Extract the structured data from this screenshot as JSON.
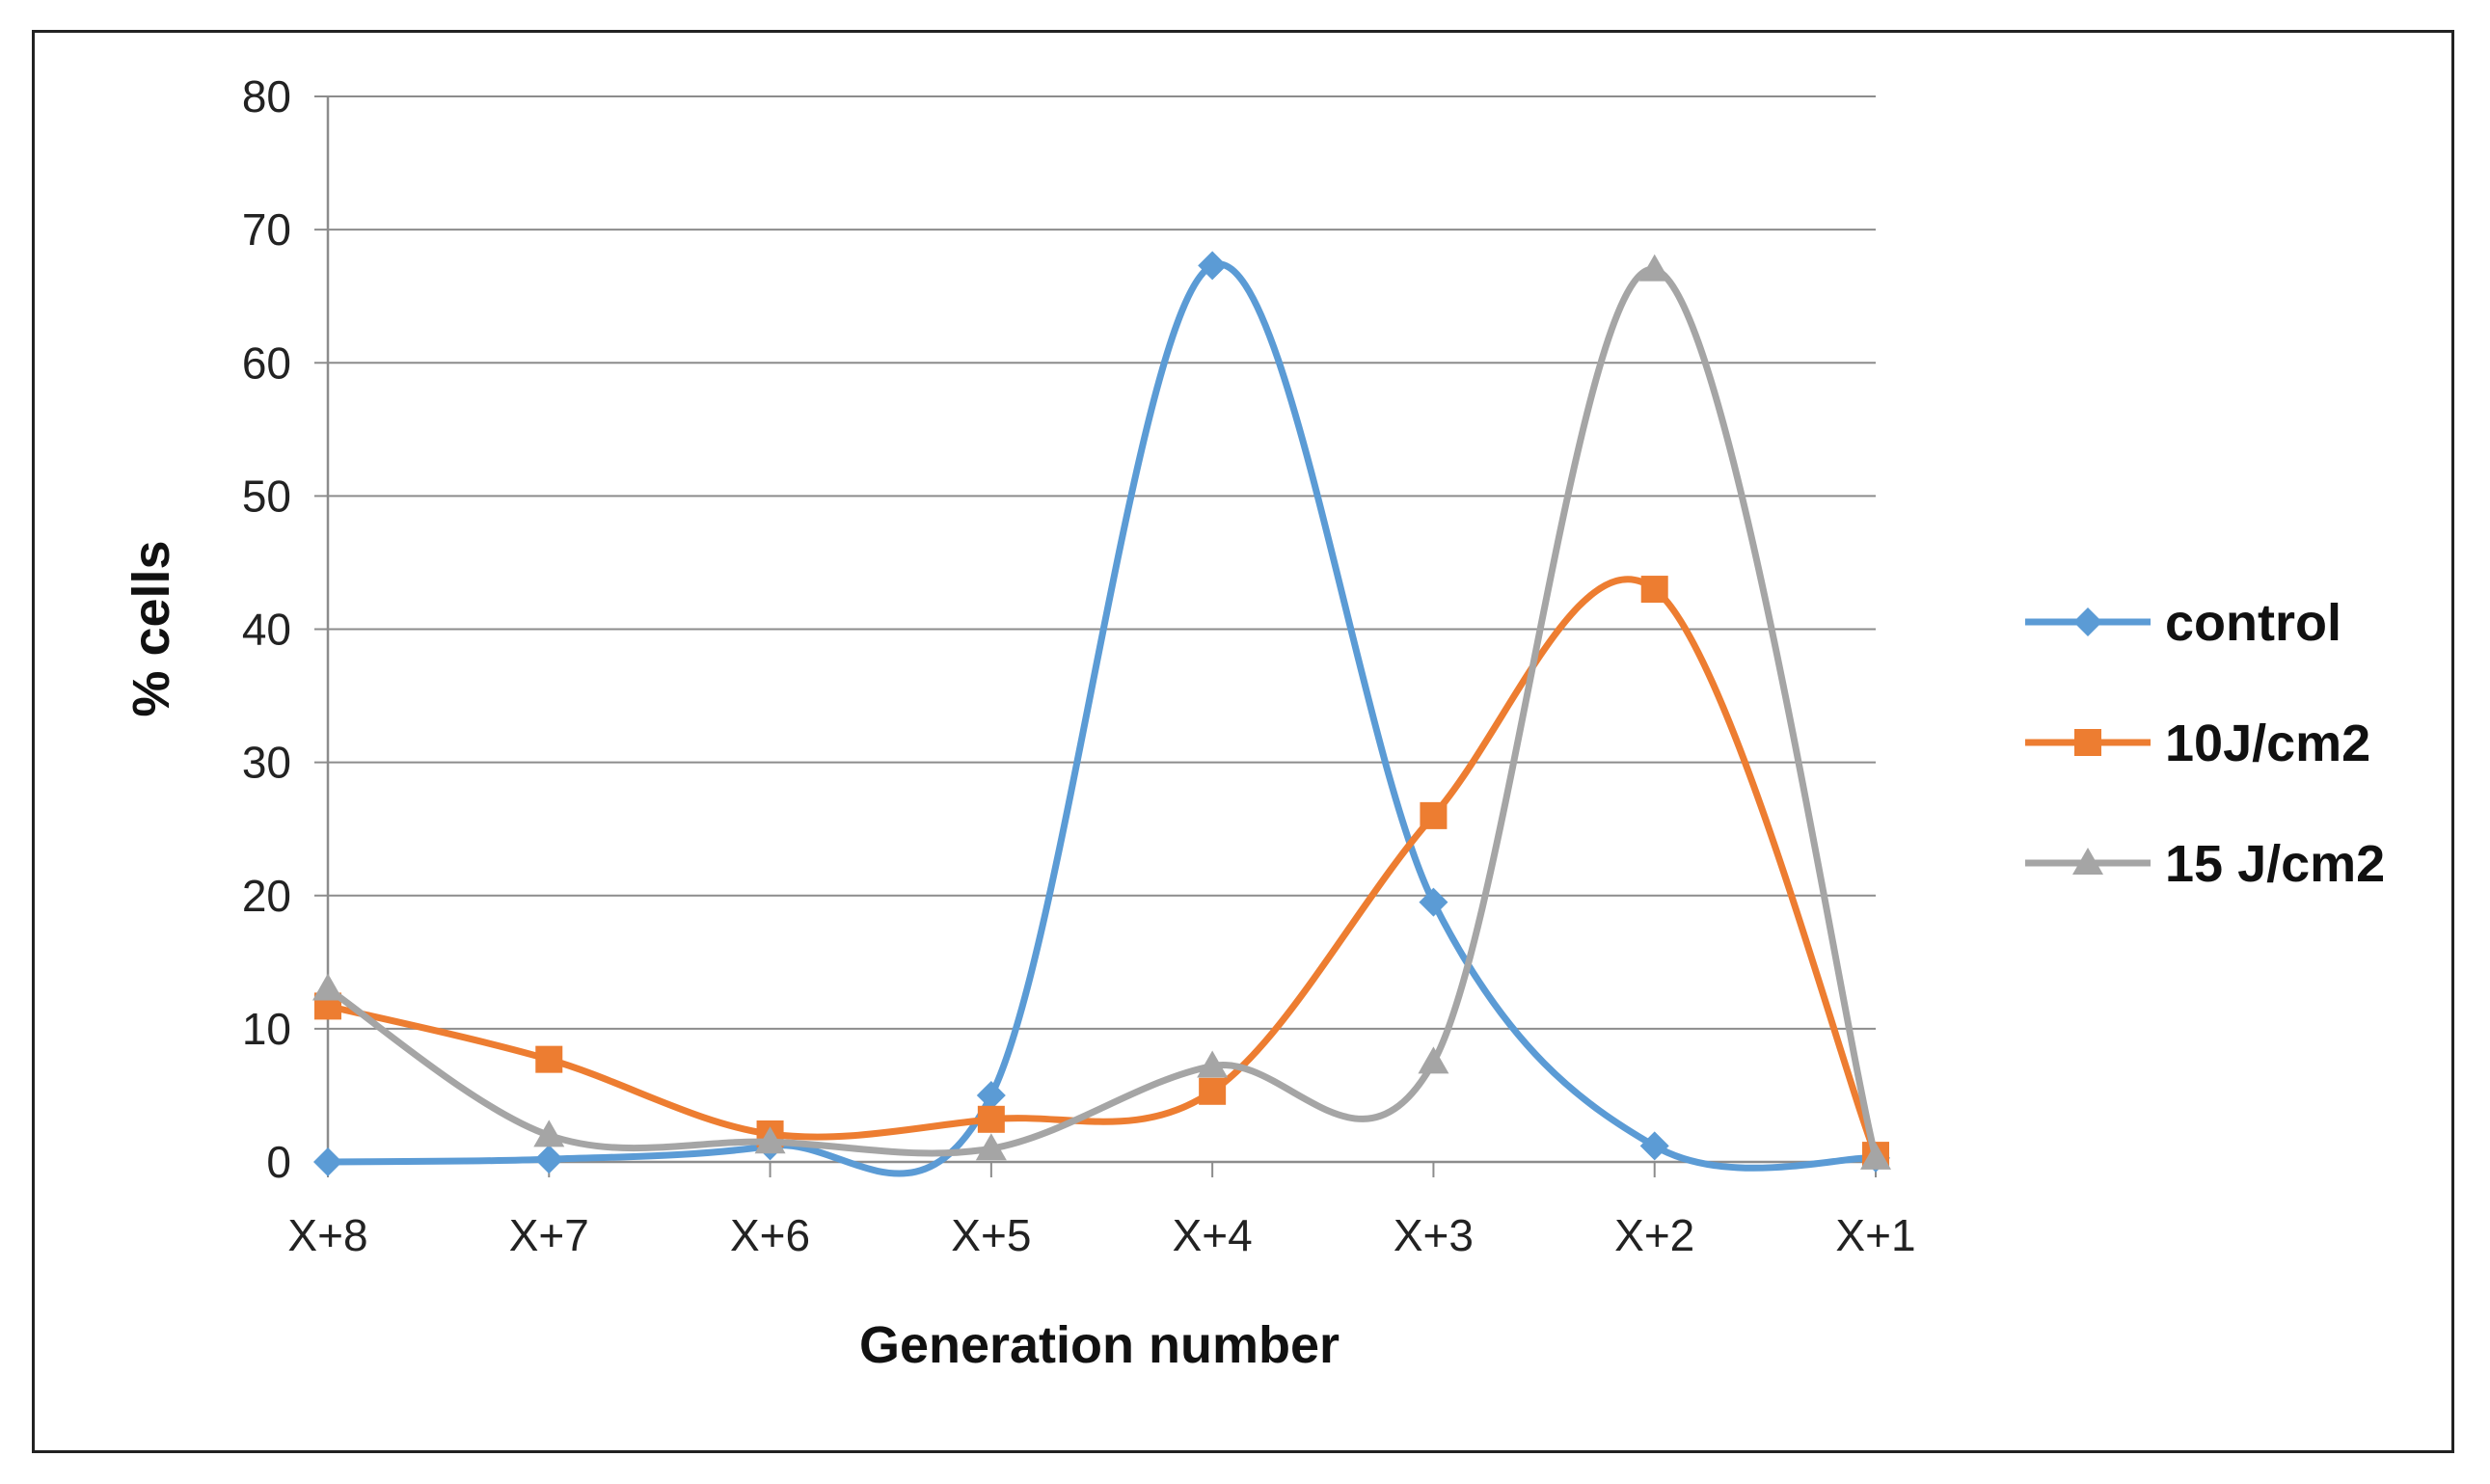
{
  "chart_data": {
    "type": "line",
    "smooth": true,
    "title": "",
    "xlabel": "Generation number",
    "ylabel": "% cells",
    "ylim": [
      0,
      80
    ],
    "yticks": [
      0,
      10,
      20,
      30,
      40,
      50,
      60,
      70,
      80
    ],
    "grid": true,
    "legend_position": "right",
    "categories": [
      "X+8",
      "X+7",
      "X+6",
      "X+5",
      "X+4",
      "X+3",
      "X+2",
      "X+1"
    ],
    "series": [
      {
        "name": "control",
        "marker": "diamond",
        "color": "#5B9BD5",
        "values": [
          0,
          0.2,
          1.2,
          5,
          67.3,
          19.5,
          1.2,
          0.3
        ]
      },
      {
        "name": "10J/cm2",
        "marker": "square",
        "color": "#ED7D31",
        "values": [
          11.7,
          7.7,
          2.1,
          3.2,
          5.3,
          26,
          43,
          0.5
        ]
      },
      {
        "name": "15 J/cm2",
        "marker": "triangle",
        "color": "#A5A5A5",
        "values": [
          13,
          2,
          1.5,
          1,
          7.2,
          7.5,
          67,
          0.3
        ]
      }
    ]
  }
}
